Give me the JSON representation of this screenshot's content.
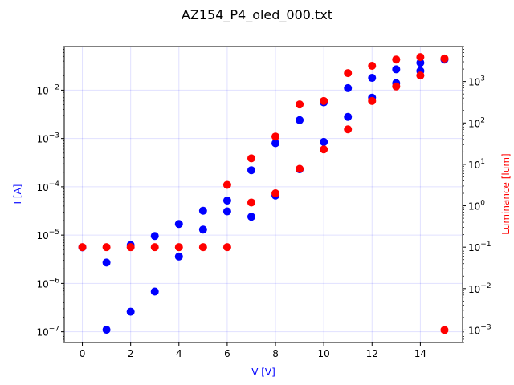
{
  "chart_data": {
    "type": "scatter",
    "title": "AZ154_P4_oled_000.txt",
    "xlabel": "V [V]",
    "ylabel_left": "I [A]",
    "ylabel_right": "Luminance [lum]",
    "xlim": [
      -0.75,
      15.75
    ],
    "ylim_left": [
      6e-08,
      0.08
    ],
    "ylim_right": [
      0.0005,
      7000
    ],
    "grid": true,
    "x_ticks": [
      0,
      2,
      4,
      6,
      8,
      10,
      12,
      14
    ],
    "left_ticks": [
      {
        "value": 1e-07,
        "base": "10",
        "exp": "−7"
      },
      {
        "value": 1e-06,
        "base": "10",
        "exp": "−6"
      },
      {
        "value": 1e-05,
        "base": "10",
        "exp": "−5"
      },
      {
        "value": 0.0001,
        "base": "10",
        "exp": "−4"
      },
      {
        "value": 0.001,
        "base": "10",
        "exp": "−3"
      },
      {
        "value": 0.01,
        "base": "10",
        "exp": "−2"
      }
    ],
    "right_ticks": [
      {
        "value": 0.001,
        "base": "10",
        "exp": "−3"
      },
      {
        "value": 0.01,
        "base": "10",
        "exp": "−2"
      },
      {
        "value": 0.1,
        "base": "10",
        "exp": "−1"
      },
      {
        "value": 1,
        "base": "10",
        "exp": "0"
      },
      {
        "value": 10,
        "base": "10",
        "exp": "1"
      },
      {
        "value": 100,
        "base": "10",
        "exp": "2"
      },
      {
        "value": 1000,
        "base": "10",
        "exp": "3"
      }
    ],
    "series": [
      {
        "name": "I [A]",
        "axis": "left",
        "color": "#0000ff",
        "points": [
          [
            0,
            5.6e-06
          ],
          [
            1,
            1.1e-07
          ],
          [
            1,
            2.7e-06
          ],
          [
            2,
            2.6e-07
          ],
          [
            2,
            6.2e-06
          ],
          [
            3,
            6.8e-07
          ],
          [
            3,
            9.6e-06
          ],
          [
            4,
            3.6e-06
          ],
          [
            4,
            1.7e-05
          ],
          [
            5,
            1.3e-05
          ],
          [
            5,
            3.2e-05
          ],
          [
            6,
            3.1e-05
          ],
          [
            6,
            5.2e-05
          ],
          [
            7,
            2.4e-05
          ],
          [
            7,
            0.00022
          ],
          [
            8,
            6.6e-05
          ],
          [
            8,
            0.0008
          ],
          [
            9,
            0.00023
          ],
          [
            9,
            0.0024
          ],
          [
            10,
            0.00085
          ],
          [
            10,
            0.0056
          ],
          [
            11,
            0.0028
          ],
          [
            11,
            0.011
          ],
          [
            12,
            0.007
          ],
          [
            12,
            0.018
          ],
          [
            13,
            0.014
          ],
          [
            13,
            0.027
          ],
          [
            14,
            0.025
          ],
          [
            14,
            0.037
          ],
          [
            15,
            0.043
          ]
        ]
      },
      {
        "name": "Luminance [lum]",
        "axis": "right",
        "color": "#ff0000",
        "points": [
          [
            0,
            0.1
          ],
          [
            1,
            0.1
          ],
          [
            2,
            0.1
          ],
          [
            3,
            0.1
          ],
          [
            4,
            0.1
          ],
          [
            5,
            0.1
          ],
          [
            6,
            0.1
          ],
          [
            6,
            3.2
          ],
          [
            7,
            1.2
          ],
          [
            7,
            14
          ],
          [
            8,
            2.0
          ],
          [
            8,
            47
          ],
          [
            9,
            7.8
          ],
          [
            9,
            280
          ],
          [
            10,
            23
          ],
          [
            10,
            340
          ],
          [
            11,
            70
          ],
          [
            11,
            1600
          ],
          [
            12,
            340
          ],
          [
            12,
            2400
          ],
          [
            13,
            760
          ],
          [
            13,
            3400
          ],
          [
            14,
            1400
          ],
          [
            14,
            3900
          ],
          [
            15,
            0.001
          ],
          [
            15,
            3600
          ]
        ]
      }
    ]
  }
}
